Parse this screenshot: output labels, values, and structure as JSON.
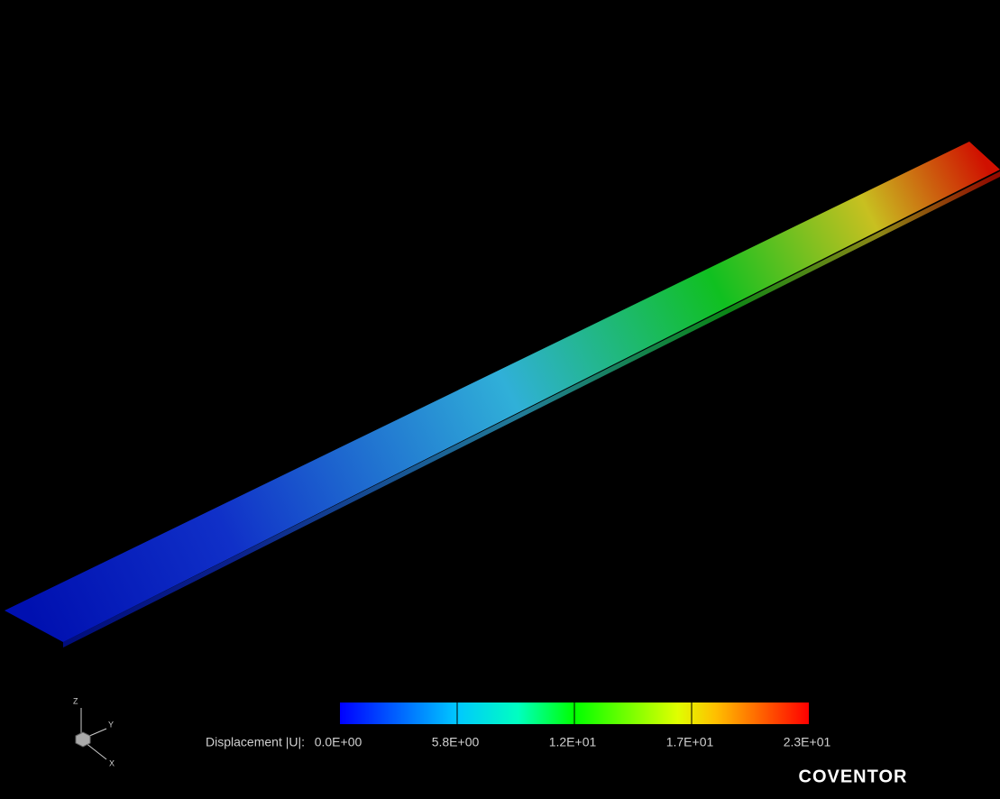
{
  "colorbar": {
    "label": "Displacement |U|:",
    "ticks": [
      "0.0E+00",
      "5.8E+00",
      "1.2E+01",
      "1.7E+01",
      "2.3E+01"
    ]
  },
  "triad": {
    "z": "Z",
    "y": "Y",
    "x": "X"
  },
  "brand": "COVENTOR"
}
